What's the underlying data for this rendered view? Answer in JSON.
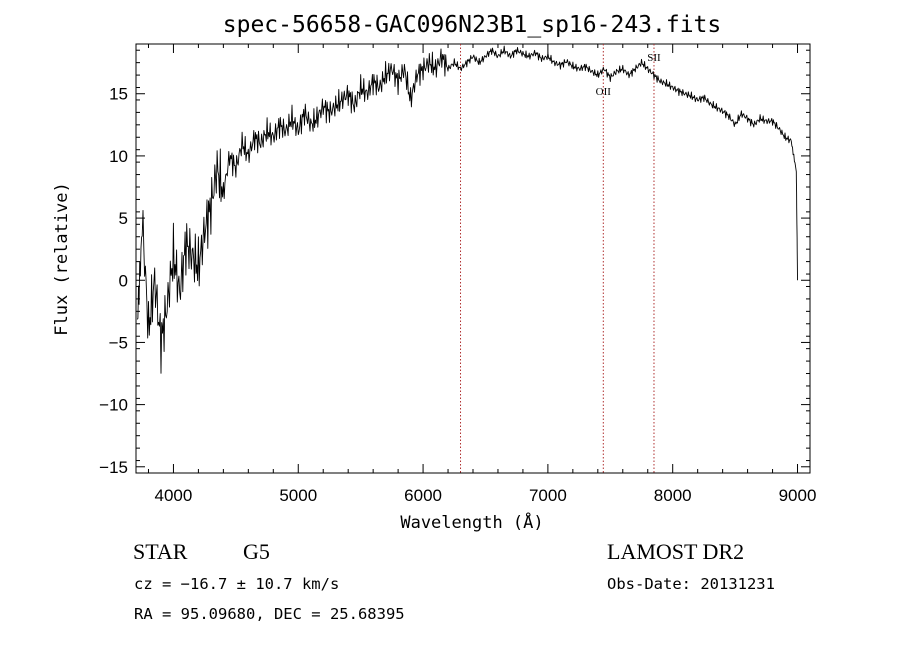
{
  "chart_data": {
    "type": "line",
    "title": "spec-56658-GAC096N23B1_sp16-243.fits",
    "xlabel": "Wavelength (Å)",
    "ylabel": "Flux (relative)",
    "xlim": [
      3700,
      9100
    ],
    "ylim": [
      -15.5,
      19
    ],
    "x_ticks": [
      4000,
      5000,
      6000,
      7000,
      8000,
      9000
    ],
    "y_ticks": [
      -15,
      -10,
      -5,
      0,
      5,
      10,
      15
    ],
    "grid": false,
    "line_color": "#000000",
    "marker_color": "#b03030",
    "x": [
      3710,
      3750,
      3800,
      3850,
      3900,
      3950,
      4000,
      4050,
      4100,
      4150,
      4200,
      4250,
      4300,
      4350,
      4400,
      4450,
      4500,
      4550,
      4600,
      4650,
      4700,
      4750,
      4800,
      4850,
      4900,
      4950,
      5000,
      5050,
      5100,
      5150,
      5200,
      5250,
      5300,
      5350,
      5400,
      5450,
      5500,
      5550,
      5600,
      5650,
      5700,
      5750,
      5800,
      5850,
      5900,
      5950,
      6000,
      6050,
      6100,
      6150,
      6200,
      6250,
      6300,
      6350,
      6400,
      6450,
      6500,
      6550,
      6600,
      6650,
      6700,
      6750,
      6800,
      6850,
      6900,
      6950,
      7000,
      7050,
      7100,
      7150,
      7200,
      7250,
      7300,
      7350,
      7400,
      7450,
      7500,
      7550,
      7600,
      7650,
      7700,
      7750,
      7800,
      7850,
      7900,
      7950,
      8000,
      8050,
      8100,
      8150,
      8200,
      8250,
      8300,
      8350,
      8400,
      8450,
      8500,
      8550,
      8600,
      8650,
      8700,
      8750,
      8800,
      8850,
      8900,
      8950,
      8990,
      9000
    ],
    "series": [
      {
        "values": [
          -2,
          5,
          -4,
          0,
          -5,
          -2,
          2,
          -1,
          3,
          2,
          1,
          4,
          6,
          9,
          7,
          10,
          9,
          11,
          10,
          11.5,
          11,
          12,
          11.5,
          12.5,
          12,
          13,
          12,
          13.5,
          12.5,
          13,
          14,
          13.5,
          14,
          14.5,
          15,
          14,
          15.5,
          15,
          16,
          15.5,
          16.5,
          17,
          16,
          17,
          14.5,
          16.5,
          17,
          17.5,
          17,
          18,
          17,
          17.5,
          17,
          17.5,
          18,
          17.5,
          18,
          18.5,
          18,
          18.5,
          18,
          18.5,
          18.2,
          18,
          18.3,
          17.8,
          18,
          17.5,
          17.3,
          17.6,
          17.2,
          17,
          17.2,
          16.8,
          16.5,
          17,
          16.3,
          16.8,
          17,
          16.5,
          17,
          17.5,
          17,
          16.5,
          16,
          15.8,
          15.5,
          15.2,
          15,
          14.8,
          14.5,
          14.7,
          14.2,
          13.9,
          13.6,
          13.2,
          12.5,
          13.4,
          13,
          12.5,
          13,
          12.8,
          12.8,
          12.2,
          11.5,
          11.2,
          9,
          0
        ]
      }
    ],
    "line_labels": [
      {
        "label": "OII",
        "x": 7444
      },
      {
        "label": "SII",
        "x": 7850
      }
    ],
    "marker_lines_x": [
      6300,
      7444,
      7850
    ]
  },
  "info": {
    "object_class": "STAR",
    "subclass": "G5",
    "survey": "LAMOST DR2",
    "cz": "cz = −16.7 ± 10.7 km/s",
    "obs_date": "Obs-Date: 20131231",
    "coords": "RA =  95.09680, DEC =  25.68395"
  }
}
